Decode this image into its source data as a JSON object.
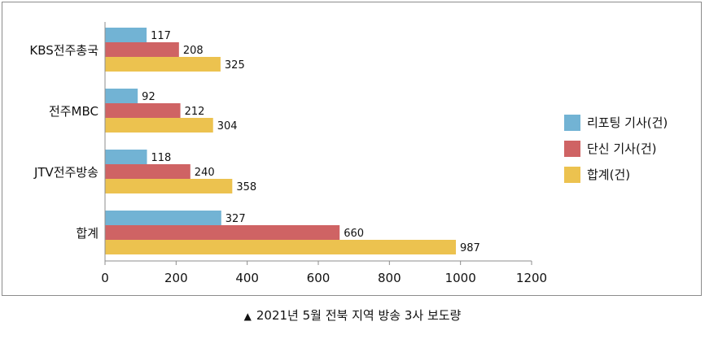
{
  "chart_data": {
    "type": "bar",
    "orientation": "horizontal",
    "categories": [
      "KBS전주총국",
      "전주MBC",
      "JTV전주방송",
      "합계"
    ],
    "series": [
      {
        "name": "리포팅 기사(건)",
        "color": "#72b3d4",
        "values": [
          117,
          92,
          118,
          327
        ]
      },
      {
        "name": "단신 기사(건)",
        "color": "#cf6364",
        "values": [
          208,
          212,
          240,
          660
        ]
      },
      {
        "name": "합계(건)",
        "color": "#ecc24f",
        "values": [
          325,
          304,
          358,
          987
        ]
      }
    ],
    "xlim": [
      0,
      1200
    ],
    "xticks": [
      0,
      200,
      400,
      600,
      800,
      1000,
      1200
    ],
    "grid": false,
    "legend_position": "right",
    "data_labels": true
  },
  "caption": {
    "marker": "▲",
    "text": "2021년 5월 전북 지역 방송 3사 보도량"
  }
}
